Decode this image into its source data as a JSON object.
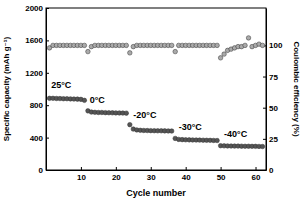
{
  "chart_data": {
    "type": "scatter",
    "x_label": "Cycle number",
    "y_label": "Specific capacity (mAh g⁻¹)",
    "y2_label": "Coulombic efficiency (%)",
    "x": [
      1,
      2,
      3,
      4,
      5,
      6,
      7,
      8,
      9,
      10,
      11,
      12,
      13,
      14,
      15,
      16,
      17,
      18,
      19,
      20,
      21,
      22,
      23,
      24,
      25,
      26,
      27,
      28,
      29,
      30,
      31,
      32,
      33,
      34,
      35,
      36,
      37,
      38,
      39,
      40,
      41,
      42,
      43,
      44,
      45,
      46,
      47,
      48,
      49,
      50,
      51,
      52,
      53,
      54,
      55,
      56,
      57,
      58,
      59,
      60,
      61,
      62
    ],
    "series": [
      {
        "name": "Specific capacity",
        "color": "#555555",
        "marker": "circle",
        "values": [
          885,
          885,
          883,
          882,
          880,
          880,
          878,
          876,
          875,
          872,
          860,
          730,
          715,
          712,
          710,
          710,
          708,
          707,
          706,
          705,
          704,
          703,
          702,
          560,
          505,
          495,
          490,
          488,
          487,
          486,
          485,
          484,
          484,
          483,
          482,
          481,
          390,
          378,
          375,
          373,
          372,
          371,
          370,
          369,
          368,
          367,
          366,
          365,
          364,
          300,
          298,
          297,
          296,
          295,
          295,
          294,
          293,
          293,
          292,
          292,
          291,
          290
        ]
      },
      {
        "name": "Coulombic efficiency",
        "color": "#aaaaaa",
        "marker": "circle",
        "axis": "y2",
        "values": [
          98,
          100,
          100,
          100,
          100,
          100,
          100,
          100,
          100,
          100,
          100,
          95,
          99,
          100,
          100,
          100,
          100,
          100,
          100,
          100,
          100,
          100,
          100,
          94,
          99,
          100,
          100,
          100,
          100,
          100,
          100,
          100,
          100,
          100,
          100,
          100,
          95,
          100,
          100,
          100,
          100,
          100,
          100,
          100,
          100,
          100,
          100,
          100,
          100,
          90,
          93,
          96,
          97,
          98,
          99,
          99,
          100,
          106,
          99,
          100,
          101,
          100
        ]
      }
    ],
    "annotations": [
      {
        "text": "25°C",
        "x": 1.5,
        "y": 1010
      },
      {
        "text": "0°C",
        "x": 12.5,
        "y": 830
      },
      {
        "text": "-20°C",
        "x": 25,
        "y": 640
      },
      {
        "text": "-30°C",
        "x": 38,
        "y": 500
      },
      {
        "text": "-40°C",
        "x": 51,
        "y": 410
      }
    ],
    "xlim": [
      0,
      63
    ],
    "xticks": [
      10,
      20,
      30,
      40,
      50,
      60
    ],
    "ylim": [
      0,
      2000
    ],
    "yticks": [
      0,
      400,
      800,
      1200,
      1600,
      2000
    ],
    "y2lim": [
      0,
      130
    ],
    "y2ticks": [
      0,
      25,
      50,
      75,
      100
    ]
  }
}
